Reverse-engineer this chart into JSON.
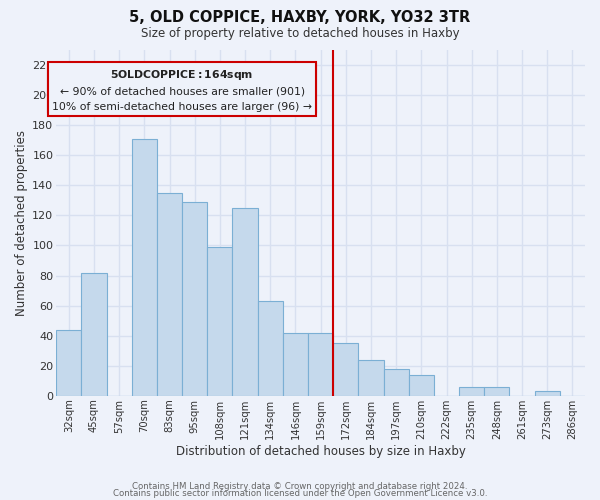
{
  "title": "5, OLD COPPICE, HAXBY, YORK, YO32 3TR",
  "subtitle": "Size of property relative to detached houses in Haxby",
  "xlabel": "Distribution of detached houses by size in Haxby",
  "ylabel": "Number of detached properties",
  "categories": [
    "32sqm",
    "45sqm",
    "57sqm",
    "70sqm",
    "83sqm",
    "95sqm",
    "108sqm",
    "121sqm",
    "134sqm",
    "146sqm",
    "159sqm",
    "172sqm",
    "184sqm",
    "197sqm",
    "210sqm",
    "222sqm",
    "235sqm",
    "248sqm",
    "261sqm",
    "273sqm",
    "286sqm"
  ],
  "values": [
    44,
    82,
    0,
    171,
    135,
    129,
    99,
    125,
    63,
    42,
    42,
    35,
    24,
    18,
    14,
    0,
    6,
    6,
    0,
    3,
    0
  ],
  "bar_color": "#c5d9ec",
  "bar_edge_color": "#7bafd4",
  "vline_color": "#cc0000",
  "annotation_title": "5 OLD COPPICE: 164sqm",
  "annotation_line1": "← 90% of detached houses are smaller (901)",
  "annotation_line2": "10% of semi-detached houses are larger (96) →",
  "ylim": [
    0,
    230
  ],
  "yticks": [
    0,
    20,
    40,
    60,
    80,
    100,
    120,
    140,
    160,
    180,
    200,
    220
  ],
  "footnote1": "Contains HM Land Registry data © Crown copyright and database right 2024.",
  "footnote2": "Contains public sector information licensed under the Open Government Licence v3.0.",
  "background_color": "#eef2fa",
  "grid_color": "#d8e0f0"
}
